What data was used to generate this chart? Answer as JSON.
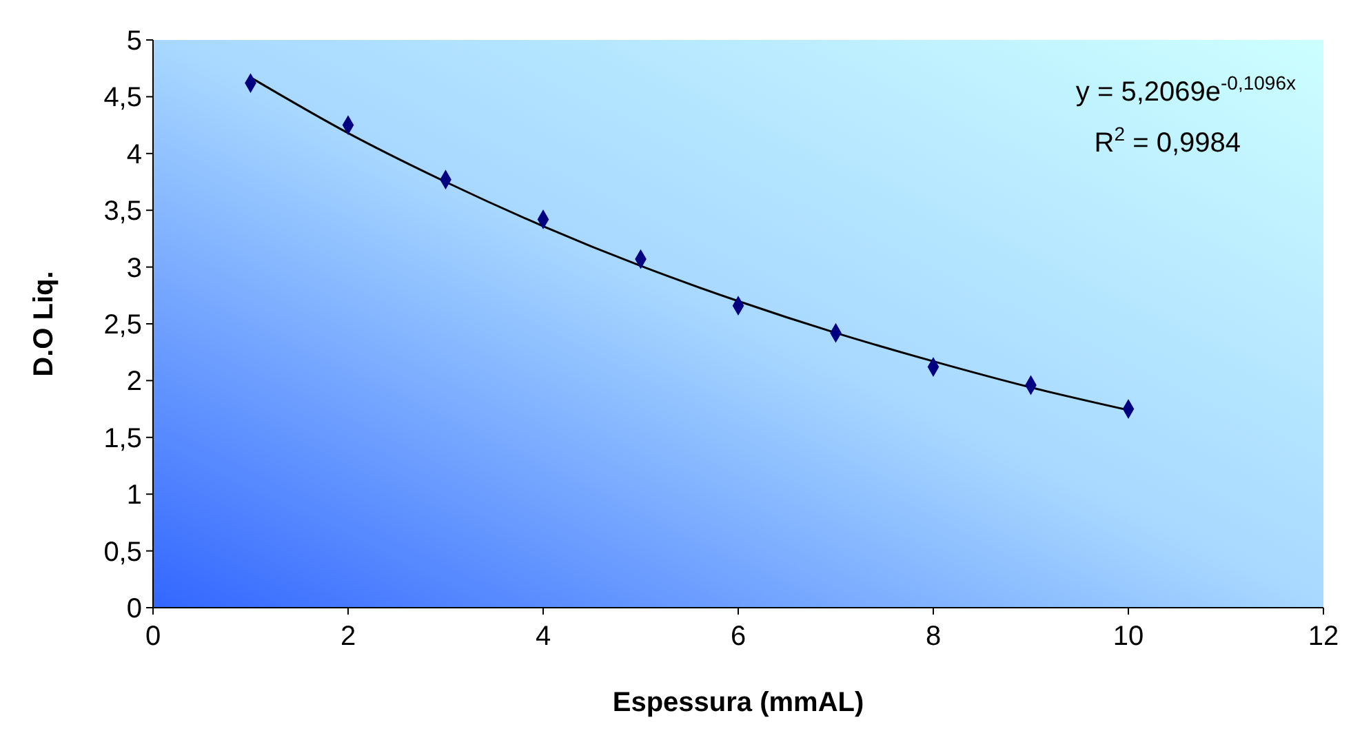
{
  "chart_data": {
    "type": "scatter",
    "xlabel": "Espessura (mmAL)",
    "ylabel": "D.O Liq.",
    "xlim": [
      0,
      12
    ],
    "xticks": [
      0,
      2,
      4,
      6,
      8,
      10,
      12
    ],
    "ylim": [
      0,
      5
    ],
    "yticks": [
      0,
      {
        "value": 0.5,
        "label": "0,5"
      },
      1,
      {
        "value": 1.5,
        "label": "1,5"
      },
      2,
      {
        "value": 2.5,
        "label": "2,5"
      },
      3,
      {
        "value": 3.5,
        "label": "3,5"
      },
      4,
      {
        "value": 4.5,
        "label": "4,5"
      },
      5
    ],
    "grid": false,
    "marker": "diamond",
    "series": [
      {
        "color": "#000080",
        "x": [
          1,
          2,
          3,
          4,
          5,
          6,
          7,
          8,
          9,
          10
        ],
        "values": [
          4.62,
          4.25,
          3.77,
          3.42,
          3.07,
          2.66,
          2.42,
          2.12,
          1.96,
          1.75
        ]
      },
      {
        "type": "line",
        "color": "#000000",
        "marker": "none",
        "line_style": "solid",
        "x": [
          1,
          2,
          3,
          4,
          5,
          6,
          7,
          8,
          9,
          10
        ],
        "values": [
          4.67,
          4.18,
          3.75,
          3.36,
          3.01,
          2.7,
          2.42,
          2.17,
          1.94,
          1.74
        ]
      }
    ],
    "annotations": [
      "y = 5,2069e$^{-0,1096x}$",
      "R$^{2}$ = 0,9984"
    ]
  }
}
